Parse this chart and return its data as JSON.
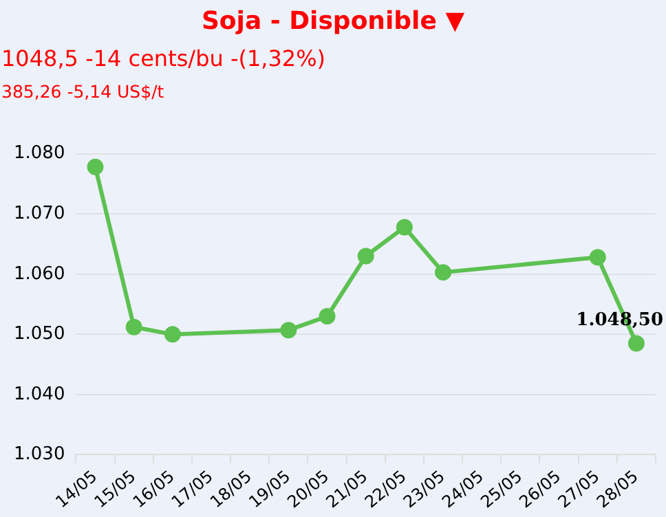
{
  "chart_data": {
    "type": "line",
    "title": "Soja - Disponible ▼",
    "subtitle": "1048,5 -14 cents/bu -(1,32%)",
    "annotations": [
      "385,26 -5,14 US$/t"
    ],
    "categories": [
      "14/05",
      "15/05",
      "16/05",
      "17/05",
      "18/05",
      "19/05",
      "20/05",
      "21/05",
      "22/05",
      "23/05",
      "24/05",
      "25/05",
      "26/05",
      "27/05",
      "28/05"
    ],
    "series": [
      {
        "color": "#5cc151",
        "values": [
          1077.8,
          1051.2,
          1050.0,
          null,
          null,
          1050.7,
          1053.0,
          1063.0,
          1067.8,
          1060.3,
          null,
          null,
          null,
          1062.8,
          1048.5
        ],
        "value_labels": [
          null,
          null,
          null,
          null,
          null,
          null,
          null,
          null,
          null,
          null,
          null,
          null,
          null,
          null,
          "1.048,50"
        ]
      }
    ],
    "ylim": [
      1030,
      1080
    ],
    "yticks": [
      {
        "value": 1030,
        "label": "1.030"
      },
      {
        "value": 1040,
        "label": "1.040"
      },
      {
        "value": 1050,
        "label": "1.050"
      },
      {
        "value": 1060,
        "label": "1.060"
      },
      {
        "value": 1070,
        "label": "1.070"
      },
      {
        "value": 1080,
        "label": "1.080"
      }
    ],
    "grid": "y",
    "legend": false,
    "marker": "circle",
    "line_style": "solid"
  }
}
